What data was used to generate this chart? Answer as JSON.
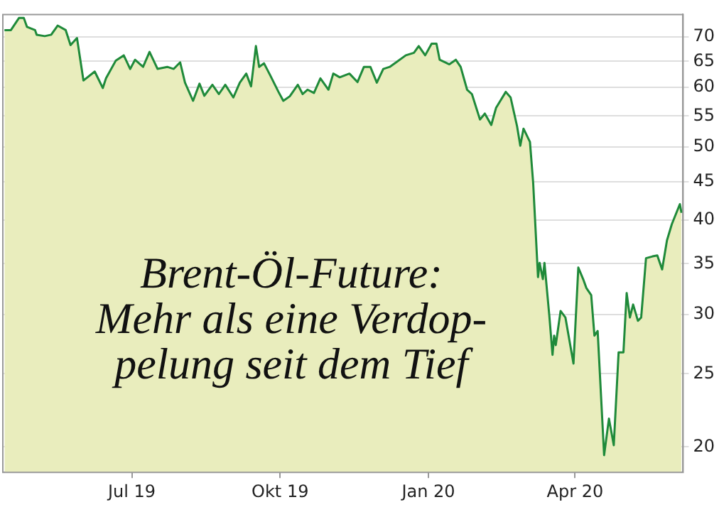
{
  "chart_data": {
    "type": "area",
    "x": [
      "2019-04-13",
      "2019-04-17",
      "2019-04-22",
      "2019-04-25",
      "2019-04-27",
      "2019-05-02",
      "2019-05-03",
      "2019-05-08",
      "2019-05-12",
      "2019-05-16",
      "2019-05-21",
      "2019-05-24",
      "2019-05-28",
      "2019-06-01",
      "2019-06-08",
      "2019-06-13",
      "2019-06-15",
      "2019-06-21",
      "2019-06-26",
      "2019-06-30",
      "2019-07-03",
      "2019-07-08",
      "2019-07-12",
      "2019-07-17",
      "2019-07-23",
      "2019-07-27",
      "2019-07-31",
      "2019-08-03",
      "2019-08-08",
      "2019-08-12",
      "2019-08-15",
      "2019-08-20",
      "2019-08-24",
      "2019-08-28",
      "2019-09-02",
      "2019-09-06",
      "2019-09-10",
      "2019-09-13",
      "2019-09-16",
      "2019-09-18",
      "2019-09-21",
      "2019-09-25",
      "2019-09-30",
      "2019-10-03",
      "2019-10-07",
      "2019-10-12",
      "2019-10-15",
      "2019-10-18",
      "2019-10-22",
      "2019-10-26",
      "2019-10-31",
      "2019-11-03",
      "2019-11-07",
      "2019-11-13",
      "2019-11-18",
      "2019-11-22",
      "2019-11-26",
      "2019-11-30",
      "2019-12-04",
      "2019-12-08",
      "2019-12-12",
      "2019-12-18",
      "2019-12-23",
      "2019-12-26",
      "2019-12-30",
      "2020-01-03",
      "2020-01-06",
      "2020-01-08",
      "2020-01-14",
      "2020-01-18",
      "2020-01-21",
      "2020-01-25",
      "2020-01-28",
      "2020-02-02",
      "2020-02-05",
      "2020-02-09",
      "2020-02-12",
      "2020-02-18",
      "2020-02-21",
      "2020-02-25",
      "2020-02-27",
      "2020-02-29",
      "2020-03-04",
      "2020-03-06",
      "2020-03-09",
      "2020-03-10",
      "2020-03-12",
      "2020-03-13",
      "2020-03-16",
      "2020-03-18",
      "2020-03-19",
      "2020-03-20",
      "2020-03-23",
      "2020-03-26",
      "2020-03-31",
      "2020-04-03",
      "2020-04-06",
      "2020-04-08",
      "2020-04-11",
      "2020-04-13",
      "2020-04-15",
      "2020-04-19",
      "2020-04-22",
      "2020-04-25",
      "2020-04-28",
      "2020-05-01",
      "2020-05-03",
      "2020-05-05",
      "2020-05-07",
      "2020-05-10",
      "2020-05-12",
      "2020-05-15",
      "2020-05-19",
      "2020-05-22",
      "2020-05-25",
      "2020-05-28",
      "2020-05-31",
      "2020-06-05",
      "2020-06-06"
    ],
    "series": [
      {
        "color": "#1f8a3a",
        "values": [
          71.5,
          71.5,
          74.2,
          74.2,
          72.2,
          71.5,
          70.5,
          70.2,
          70.5,
          72.5,
          71.5,
          68.3,
          69.8,
          61.3,
          63.0,
          59.9,
          61.7,
          65.1,
          66.2,
          63.5,
          65.3,
          63.9,
          66.9,
          63.5,
          63.9,
          63.5,
          64.8,
          60.9,
          57.6,
          60.7,
          58.5,
          60.5,
          58.8,
          60.5,
          58.2,
          60.9,
          62.6,
          60.2,
          68.1,
          63.9,
          64.6,
          62.2,
          59.2,
          57.6,
          58.4,
          60.5,
          58.8,
          59.6,
          59.0,
          61.7,
          59.6,
          62.6,
          61.9,
          62.6,
          61.0,
          63.9,
          63.9,
          60.9,
          63.5,
          63.9,
          64.8,
          66.2,
          66.7,
          68.1,
          66.2,
          68.6,
          68.6,
          65.3,
          64.4,
          65.3,
          63.9,
          59.6,
          58.8,
          54.4,
          55.4,
          53.5,
          56.4,
          59.2,
          58.2,
          53.3,
          50.2,
          52.9,
          50.8,
          44.8,
          33.6,
          35.1,
          33.4,
          35.1,
          29.9,
          26.5,
          28.1,
          27.3,
          30.3,
          29.7,
          25.8,
          34.6,
          33.4,
          32.5,
          31.8,
          28.1,
          28.5,
          19.5,
          21.8,
          20.1,
          26.7,
          26.7,
          32.0,
          29.7,
          30.9,
          29.4,
          29.7,
          35.6,
          35.8,
          35.9,
          34.4,
          37.6,
          39.5,
          42.0,
          40.9
        ]
      }
    ],
    "xlim": [
      "2019-04-12",
      "2020-06-07"
    ],
    "xticks": [
      {
        "value": "2019-07-01",
        "label": "Jul 19"
      },
      {
        "value": "2019-10-01",
        "label": "Okt 19"
      },
      {
        "value": "2020-01-01",
        "label": "Jan 20"
      },
      {
        "value": "2020-04-01",
        "label": "Apr 20"
      }
    ],
    "log": true,
    "ylim": [
      18.5,
      75
    ],
    "yticks": [
      20,
      25,
      30,
      35,
      40,
      45,
      50,
      55,
      60,
      65,
      70
    ],
    "grid": "y",
    "legend": false,
    "annotations": [
      "Brent-Öl-Future:\nMehr als eine Verdop-\npelung seit dem Tief"
    ]
  }
}
